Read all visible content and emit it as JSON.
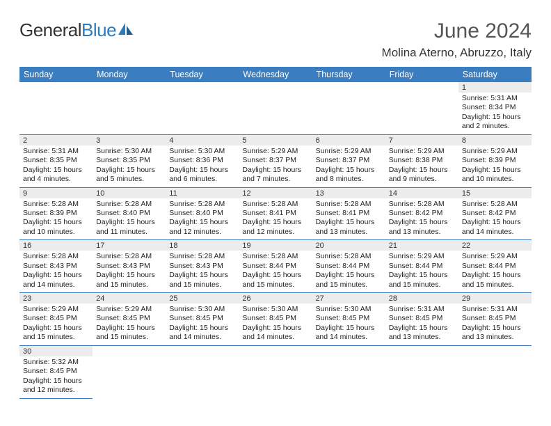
{
  "brand": {
    "name_part1": "General",
    "name_part2": "Blue",
    "text_color": "#333333",
    "accent_color": "#2b7bbf"
  },
  "title": {
    "month": "June 2024",
    "location": "Molina Aterno, Abruzzo, Italy",
    "title_fontsize": 30,
    "location_fontsize": 17,
    "title_color": "#555555"
  },
  "calendar": {
    "header_bg": "#3a7ec1",
    "header_fg": "#ffffff",
    "daynum_bg": "#ececec",
    "border_color": "#3a7ec1",
    "columns": [
      "Sunday",
      "Monday",
      "Tuesday",
      "Wednesday",
      "Thursday",
      "Friday",
      "Saturday"
    ],
    "weeks": [
      [
        null,
        null,
        null,
        null,
        null,
        null,
        {
          "n": "1",
          "sr": "Sunrise: 5:31 AM",
          "ss": "Sunset: 8:34 PM",
          "dl": "Daylight: 15 hours and 2 minutes."
        }
      ],
      [
        {
          "n": "2",
          "sr": "Sunrise: 5:31 AM",
          "ss": "Sunset: 8:35 PM",
          "dl": "Daylight: 15 hours and 4 minutes."
        },
        {
          "n": "3",
          "sr": "Sunrise: 5:30 AM",
          "ss": "Sunset: 8:35 PM",
          "dl": "Daylight: 15 hours and 5 minutes."
        },
        {
          "n": "4",
          "sr": "Sunrise: 5:30 AM",
          "ss": "Sunset: 8:36 PM",
          "dl": "Daylight: 15 hours and 6 minutes."
        },
        {
          "n": "5",
          "sr": "Sunrise: 5:29 AM",
          "ss": "Sunset: 8:37 PM",
          "dl": "Daylight: 15 hours and 7 minutes."
        },
        {
          "n": "6",
          "sr": "Sunrise: 5:29 AM",
          "ss": "Sunset: 8:37 PM",
          "dl": "Daylight: 15 hours and 8 minutes."
        },
        {
          "n": "7",
          "sr": "Sunrise: 5:29 AM",
          "ss": "Sunset: 8:38 PM",
          "dl": "Daylight: 15 hours and 9 minutes."
        },
        {
          "n": "8",
          "sr": "Sunrise: 5:29 AM",
          "ss": "Sunset: 8:39 PM",
          "dl": "Daylight: 15 hours and 10 minutes."
        }
      ],
      [
        {
          "n": "9",
          "sr": "Sunrise: 5:28 AM",
          "ss": "Sunset: 8:39 PM",
          "dl": "Daylight: 15 hours and 10 minutes."
        },
        {
          "n": "10",
          "sr": "Sunrise: 5:28 AM",
          "ss": "Sunset: 8:40 PM",
          "dl": "Daylight: 15 hours and 11 minutes."
        },
        {
          "n": "11",
          "sr": "Sunrise: 5:28 AM",
          "ss": "Sunset: 8:40 PM",
          "dl": "Daylight: 15 hours and 12 minutes."
        },
        {
          "n": "12",
          "sr": "Sunrise: 5:28 AM",
          "ss": "Sunset: 8:41 PM",
          "dl": "Daylight: 15 hours and 12 minutes."
        },
        {
          "n": "13",
          "sr": "Sunrise: 5:28 AM",
          "ss": "Sunset: 8:41 PM",
          "dl": "Daylight: 15 hours and 13 minutes."
        },
        {
          "n": "14",
          "sr": "Sunrise: 5:28 AM",
          "ss": "Sunset: 8:42 PM",
          "dl": "Daylight: 15 hours and 13 minutes."
        },
        {
          "n": "15",
          "sr": "Sunrise: 5:28 AM",
          "ss": "Sunset: 8:42 PM",
          "dl": "Daylight: 15 hours and 14 minutes."
        }
      ],
      [
        {
          "n": "16",
          "sr": "Sunrise: 5:28 AM",
          "ss": "Sunset: 8:43 PM",
          "dl": "Daylight: 15 hours and 14 minutes."
        },
        {
          "n": "17",
          "sr": "Sunrise: 5:28 AM",
          "ss": "Sunset: 8:43 PM",
          "dl": "Daylight: 15 hours and 15 minutes."
        },
        {
          "n": "18",
          "sr": "Sunrise: 5:28 AM",
          "ss": "Sunset: 8:43 PM",
          "dl": "Daylight: 15 hours and 15 minutes."
        },
        {
          "n": "19",
          "sr": "Sunrise: 5:28 AM",
          "ss": "Sunset: 8:44 PM",
          "dl": "Daylight: 15 hours and 15 minutes."
        },
        {
          "n": "20",
          "sr": "Sunrise: 5:28 AM",
          "ss": "Sunset: 8:44 PM",
          "dl": "Daylight: 15 hours and 15 minutes."
        },
        {
          "n": "21",
          "sr": "Sunrise: 5:29 AM",
          "ss": "Sunset: 8:44 PM",
          "dl": "Daylight: 15 hours and 15 minutes."
        },
        {
          "n": "22",
          "sr": "Sunrise: 5:29 AM",
          "ss": "Sunset: 8:44 PM",
          "dl": "Daylight: 15 hours and 15 minutes."
        }
      ],
      [
        {
          "n": "23",
          "sr": "Sunrise: 5:29 AM",
          "ss": "Sunset: 8:45 PM",
          "dl": "Daylight: 15 hours and 15 minutes."
        },
        {
          "n": "24",
          "sr": "Sunrise: 5:29 AM",
          "ss": "Sunset: 8:45 PM",
          "dl": "Daylight: 15 hours and 15 minutes."
        },
        {
          "n": "25",
          "sr": "Sunrise: 5:30 AM",
          "ss": "Sunset: 8:45 PM",
          "dl": "Daylight: 15 hours and 14 minutes."
        },
        {
          "n": "26",
          "sr": "Sunrise: 5:30 AM",
          "ss": "Sunset: 8:45 PM",
          "dl": "Daylight: 15 hours and 14 minutes."
        },
        {
          "n": "27",
          "sr": "Sunrise: 5:30 AM",
          "ss": "Sunset: 8:45 PM",
          "dl": "Daylight: 15 hours and 14 minutes."
        },
        {
          "n": "28",
          "sr": "Sunrise: 5:31 AM",
          "ss": "Sunset: 8:45 PM",
          "dl": "Daylight: 15 hours and 13 minutes."
        },
        {
          "n": "29",
          "sr": "Sunrise: 5:31 AM",
          "ss": "Sunset: 8:45 PM",
          "dl": "Daylight: 15 hours and 13 minutes."
        }
      ],
      [
        {
          "n": "30",
          "sr": "Sunrise: 5:32 AM",
          "ss": "Sunset: 8:45 PM",
          "dl": "Daylight: 15 hours and 12 minutes."
        },
        null,
        null,
        null,
        null,
        null,
        null
      ]
    ]
  }
}
